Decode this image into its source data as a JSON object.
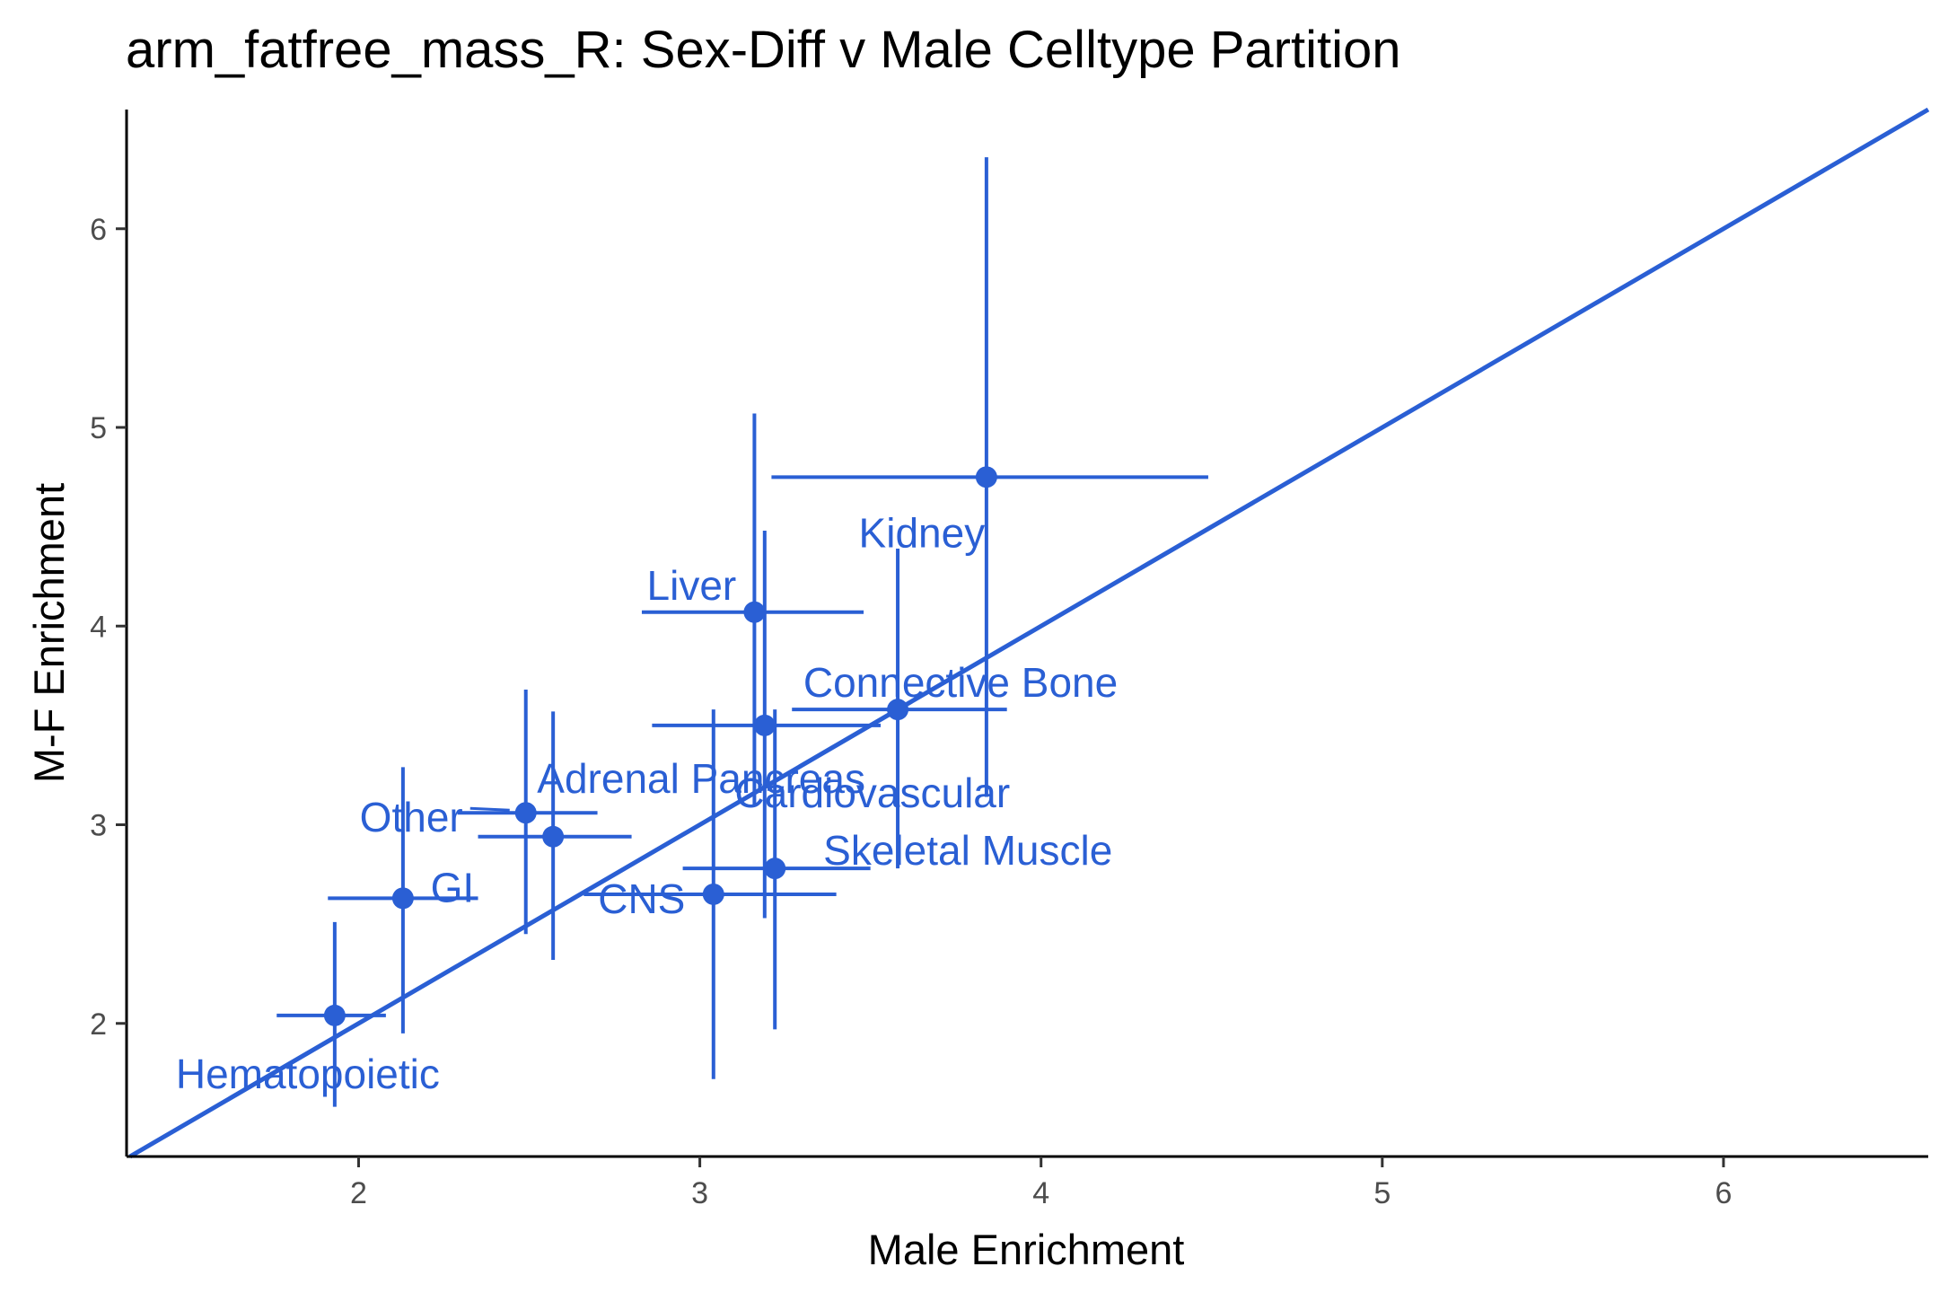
{
  "chart_data": {
    "type": "scatter",
    "title": "arm_fatfree_mass_R: Sex-Diff v Male Celltype Partition",
    "xlabel": "Male Enrichment",
    "ylabel": "M-F Enrichment",
    "xlim": [
      1.32,
      6.6
    ],
    "ylim": [
      1.33,
      6.6
    ],
    "xticks": [
      2,
      3,
      4,
      5,
      6
    ],
    "yticks": [
      2,
      3,
      4,
      5,
      6
    ],
    "grid": false,
    "color": "#2a5fd4",
    "reference_line": {
      "slope": 1,
      "intercept": 0
    },
    "points": [
      {
        "label": "Hematopoietic",
        "x": 1.93,
        "y": 2.04,
        "x_err": [
          1.76,
          2.08
        ],
        "y_err": [
          1.58,
          2.51
        ]
      },
      {
        "label": "GI",
        "x": 2.13,
        "y": 2.63,
        "x_err": [
          1.91,
          2.35
        ],
        "y_err": [
          1.95,
          3.29
        ]
      },
      {
        "label": "Other",
        "x": 2.49,
        "y": 3.06,
        "x_err": [
          2.29,
          2.7
        ],
        "y_err": [
          2.45,
          3.68
        ]
      },
      {
        "label": "Adrenal Pancreas",
        "x": 2.57,
        "y": 2.94,
        "x_err": [
          2.35,
          2.8
        ],
        "y_err": [
          2.32,
          3.57
        ]
      },
      {
        "label": "CNS",
        "x": 3.04,
        "y": 2.65,
        "x_err": [
          2.66,
          3.4
        ],
        "y_err": [
          1.72,
          3.58
        ]
      },
      {
        "label": "Cardiovascular",
        "x": 3.19,
        "y": 3.5,
        "x_err": [
          2.86,
          3.53
        ],
        "y_err": [
          2.53,
          4.48
        ]
      },
      {
        "label": "Liver",
        "x": 3.16,
        "y": 4.07,
        "x_err": [
          2.83,
          3.48
        ],
        "y_err": [
          3.1,
          5.07
        ]
      },
      {
        "label": "Skeletal Muscle",
        "x": 3.22,
        "y": 2.78,
        "x_err": [
          2.95,
          3.5
        ],
        "y_err": [
          1.97,
          3.58
        ]
      },
      {
        "label": "Connective Bone",
        "x": 3.58,
        "y": 3.58,
        "x_err": [
          3.27,
          3.9
        ],
        "y_err": [
          2.78,
          4.39
        ]
      },
      {
        "label": "Kidney",
        "x": 3.84,
        "y": 4.75,
        "x_err": [
          3.21,
          4.49
        ],
        "y_err": [
          3.14,
          6.36
        ]
      }
    ]
  }
}
